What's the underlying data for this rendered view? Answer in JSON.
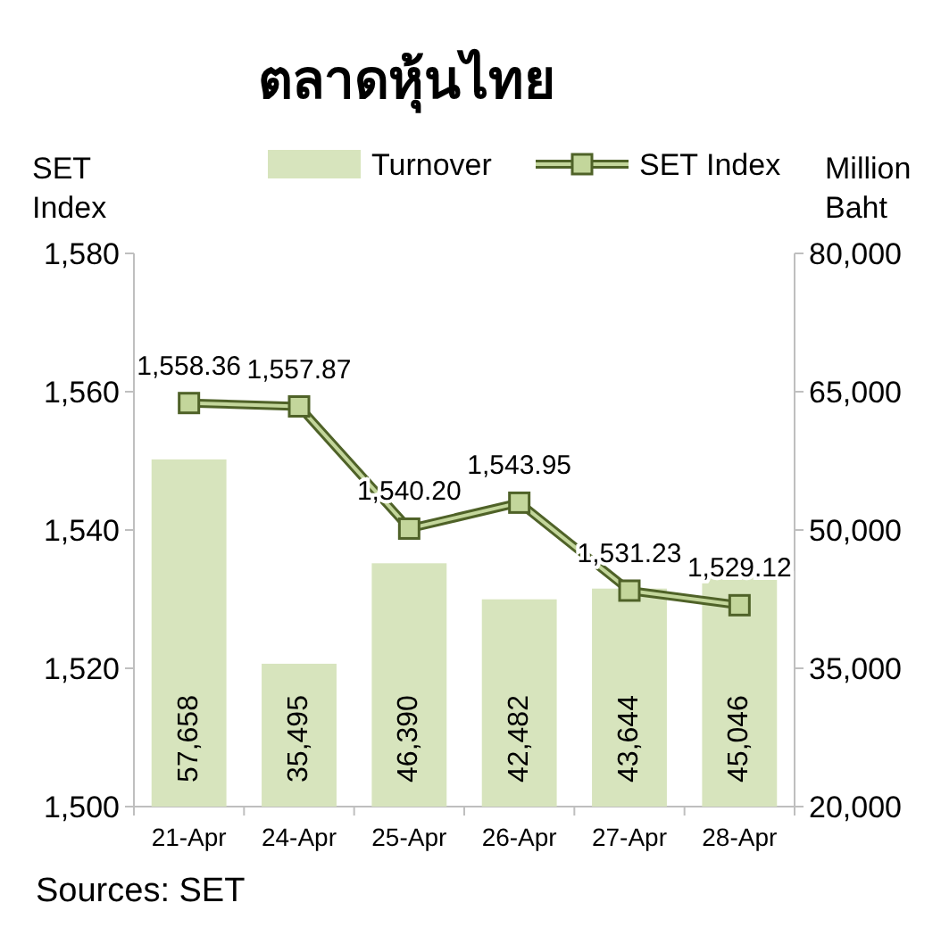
{
  "chart_data": {
    "type": "bar",
    "title": "ตลาดหุ้นไทย",
    "ylabel": "SET Index",
    "y2label": "Million Baht",
    "categories": [
      "21-Apr",
      "24-Apr",
      "25-Apr",
      "26-Apr",
      "27-Apr",
      "28-Apr"
    ],
    "series": [
      {
        "name": "Turnover",
        "axis": "y2",
        "color": "#d7e4bd",
        "values": [
          57658,
          35495,
          46390,
          42482,
          43644,
          45046
        ],
        "value_labels": [
          "57,658",
          "35,495",
          "46,390",
          "42,482",
          "43,644",
          "45,046"
        ]
      },
      {
        "name": "SET Index",
        "type": "line",
        "color": "#4f6228",
        "marker": "square",
        "values": [
          1558.36,
          1557.87,
          1540.2,
          1543.95,
          1531.23,
          1529.12
        ],
        "value_labels": [
          "1,558.36",
          "1,557.87",
          "1,540.20",
          "1,543.95",
          "1,531.23",
          "1,529.12"
        ]
      }
    ],
    "ylim": [
      1500,
      1580
    ],
    "yticks": [
      {
        "value": 1500,
        "label": "1,500"
      },
      {
        "value": 1520,
        "label": "1,520"
      },
      {
        "value": 1540,
        "label": "1,540"
      },
      {
        "value": 1560,
        "label": "1,560"
      },
      {
        "value": 1580,
        "label": "1,580"
      }
    ],
    "y2lim": [
      20000,
      80000
    ],
    "y2ticks": [
      {
        "value": 20000,
        "label": "20,000"
      },
      {
        "value": 35000,
        "label": "35,000"
      },
      {
        "value": 50000,
        "label": "50,000"
      },
      {
        "value": 65000,
        "label": "65,000"
      },
      {
        "value": 80000,
        "label": "80,000"
      }
    ],
    "legend": "top",
    "annotations": [
      "Sources: SET"
    ]
  }
}
